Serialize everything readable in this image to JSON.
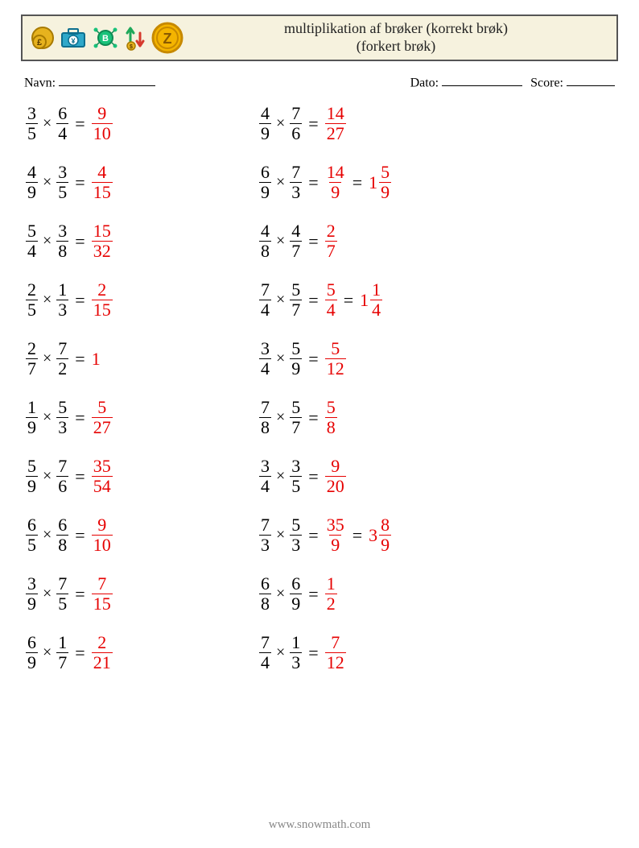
{
  "header": {
    "title_line1": "multiplikation af brøker (korrekt brøk)",
    "title_line2": "(forkert brøk)",
    "icons": [
      {
        "name": "coin-pound-icon",
        "glyph": "pound"
      },
      {
        "name": "briefcase-yen-icon",
        "glyph": "briefcase"
      },
      {
        "name": "coin-bitcoin-icon",
        "glyph": "bitcoin"
      },
      {
        "name": "arrows-coin-icon",
        "glyph": "arrows"
      },
      {
        "name": "coin-z-icon",
        "glyph": "coin-z"
      }
    ]
  },
  "meta": {
    "name_label": "Navn:",
    "date_label": "Dato:",
    "score_label": "Score:"
  },
  "colors": {
    "answer": "#e60000",
    "text": "#000000",
    "header_border": "#555555",
    "header_bg": "#f6f2de",
    "footer": "#888888"
  },
  "typography": {
    "body_fontsize": 22,
    "title_fontsize": 18,
    "meta_fontsize": 16,
    "footer_fontsize": 15
  },
  "problems": [
    {
      "left": {
        "a": {
          "n": 3,
          "d": 5
        },
        "b": {
          "n": 6,
          "d": 4
        },
        "ans": {
          "n": 9,
          "d": 10
        }
      },
      "right": {
        "a": {
          "n": 4,
          "d": 9
        },
        "b": {
          "n": 7,
          "d": 6
        },
        "ans": {
          "n": 14,
          "d": 27
        }
      }
    },
    {
      "left": {
        "a": {
          "n": 4,
          "d": 9
        },
        "b": {
          "n": 3,
          "d": 5
        },
        "ans": {
          "n": 4,
          "d": 15
        }
      },
      "right": {
        "a": {
          "n": 6,
          "d": 9
        },
        "b": {
          "n": 7,
          "d": 3
        },
        "ans": {
          "n": 14,
          "d": 9
        },
        "mixed": {
          "w": 1,
          "n": 5,
          "d": 9
        }
      }
    },
    {
      "left": {
        "a": {
          "n": 5,
          "d": 4
        },
        "b": {
          "n": 3,
          "d": 8
        },
        "ans": {
          "n": 15,
          "d": 32
        }
      },
      "right": {
        "a": {
          "n": 4,
          "d": 8
        },
        "b": {
          "n": 4,
          "d": 7
        },
        "ans": {
          "n": 2,
          "d": 7
        }
      }
    },
    {
      "left": {
        "a": {
          "n": 2,
          "d": 5
        },
        "b": {
          "n": 1,
          "d": 3
        },
        "ans": {
          "n": 2,
          "d": 15
        }
      },
      "right": {
        "a": {
          "n": 7,
          "d": 4
        },
        "b": {
          "n": 5,
          "d": 7
        },
        "ans": {
          "n": 5,
          "d": 4
        },
        "mixed": {
          "w": 1,
          "n": 1,
          "d": 4
        }
      }
    },
    {
      "left": {
        "a": {
          "n": 2,
          "d": 7
        },
        "b": {
          "n": 7,
          "d": 2
        },
        "ans_whole": 1
      },
      "right": {
        "a": {
          "n": 3,
          "d": 4
        },
        "b": {
          "n": 5,
          "d": 9
        },
        "ans": {
          "n": 5,
          "d": 12
        }
      }
    },
    {
      "left": {
        "a": {
          "n": 1,
          "d": 9
        },
        "b": {
          "n": 5,
          "d": 3
        },
        "ans": {
          "n": 5,
          "d": 27
        }
      },
      "right": {
        "a": {
          "n": 7,
          "d": 8
        },
        "b": {
          "n": 5,
          "d": 7
        },
        "ans": {
          "n": 5,
          "d": 8
        }
      }
    },
    {
      "left": {
        "a": {
          "n": 5,
          "d": 9
        },
        "b": {
          "n": 7,
          "d": 6
        },
        "ans": {
          "n": 35,
          "d": 54
        }
      },
      "right": {
        "a": {
          "n": 3,
          "d": 4
        },
        "b": {
          "n": 3,
          "d": 5
        },
        "ans": {
          "n": 9,
          "d": 20
        }
      }
    },
    {
      "left": {
        "a": {
          "n": 6,
          "d": 5
        },
        "b": {
          "n": 6,
          "d": 8
        },
        "ans": {
          "n": 9,
          "d": 10
        }
      },
      "right": {
        "a": {
          "n": 7,
          "d": 3
        },
        "b": {
          "n": 5,
          "d": 3
        },
        "ans": {
          "n": 35,
          "d": 9
        },
        "mixed": {
          "w": 3,
          "n": 8,
          "d": 9
        }
      }
    },
    {
      "left": {
        "a": {
          "n": 3,
          "d": 9
        },
        "b": {
          "n": 7,
          "d": 5
        },
        "ans": {
          "n": 7,
          "d": 15
        }
      },
      "right": {
        "a": {
          "n": 6,
          "d": 8
        },
        "b": {
          "n": 6,
          "d": 9
        },
        "ans": {
          "n": 1,
          "d": 2
        }
      }
    },
    {
      "left": {
        "a": {
          "n": 6,
          "d": 9
        },
        "b": {
          "n": 1,
          "d": 7
        },
        "ans": {
          "n": 2,
          "d": 21
        }
      },
      "right": {
        "a": {
          "n": 7,
          "d": 4
        },
        "b": {
          "n": 1,
          "d": 3
        },
        "ans": {
          "n": 7,
          "d": 12
        }
      }
    }
  ],
  "footer": {
    "text": "www.snowmath.com"
  }
}
